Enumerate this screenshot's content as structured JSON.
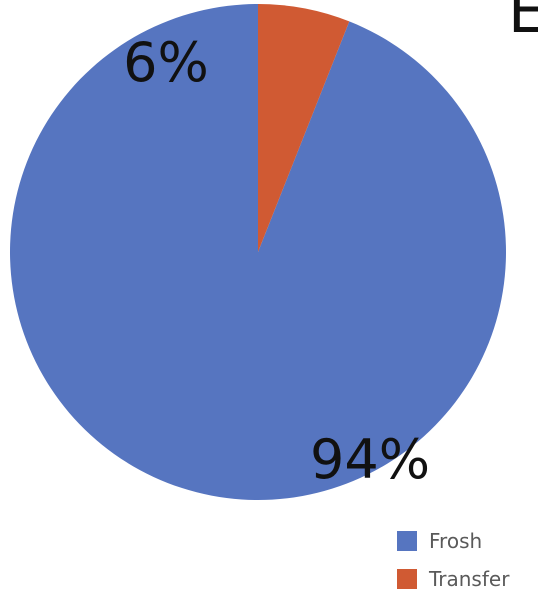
{
  "corner_text": "E",
  "chart_data": {
    "type": "pie",
    "labels": [
      "Frosh",
      "Transfer"
    ],
    "values": [
      94,
      6
    ],
    "value_labels": [
      "94%",
      "6%"
    ],
    "colors": [
      "#5675C0",
      "#D05A33"
    ],
    "title": "",
    "legend_position": "bottom-right"
  },
  "legend": {
    "items": [
      {
        "label": "Frosh",
        "color": "#5675C0"
      },
      {
        "label": "Transfer",
        "color": "#D05A33"
      }
    ]
  }
}
